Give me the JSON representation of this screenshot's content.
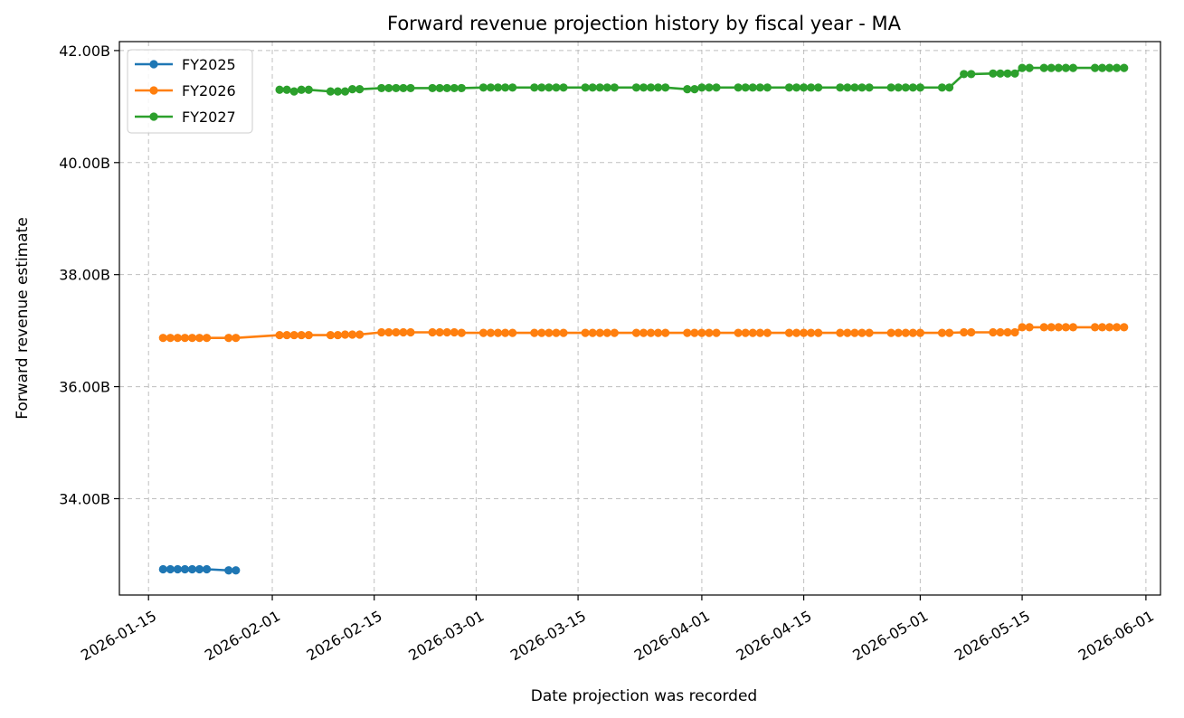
{
  "chart_data": {
    "type": "line",
    "title": "Forward revenue projection history by fiscal year - MA",
    "xlabel": "Date projection was recorded",
    "ylabel": "Forward revenue estimate",
    "x_type": "date",
    "xlim": [
      "2026-01-11",
      "2026-06-03"
    ],
    "ylim": [
      32.28,
      42.16
    ],
    "x_ticks": [
      "2026-01-15",
      "2026-02-01",
      "2026-02-15",
      "2026-03-01",
      "2026-03-15",
      "2026-04-01",
      "2026-04-15",
      "2026-05-01",
      "2026-05-15",
      "2026-06-01"
    ],
    "y_ticks": [
      34.0,
      36.0,
      38.0,
      40.0,
      42.0
    ],
    "y_tick_labels": [
      "34.00B",
      "36.00B",
      "38.00B",
      "40.00B",
      "42.00B"
    ],
    "grid": true,
    "legend_position": "top-left",
    "series": [
      {
        "name": "FY2025",
        "color": "#1f77b4",
        "points": [
          [
            "2026-01-17",
            32.74
          ],
          [
            "2026-01-18",
            32.74
          ],
          [
            "2026-01-19",
            32.74
          ],
          [
            "2026-01-20",
            32.74
          ],
          [
            "2026-01-21",
            32.74
          ],
          [
            "2026-01-22",
            32.74
          ],
          [
            "2026-01-23",
            32.74
          ],
          [
            "2026-01-26",
            32.72
          ],
          [
            "2026-01-27",
            32.72
          ]
        ]
      },
      {
        "name": "FY2026",
        "color": "#ff7f0e",
        "points": [
          [
            "2026-01-17",
            36.87
          ],
          [
            "2026-01-18",
            36.87
          ],
          [
            "2026-01-19",
            36.87
          ],
          [
            "2026-01-20",
            36.87
          ],
          [
            "2026-01-21",
            36.87
          ],
          [
            "2026-01-22",
            36.87
          ],
          [
            "2026-01-23",
            36.87
          ],
          [
            "2026-01-26",
            36.87
          ],
          [
            "2026-01-27",
            36.87
          ],
          [
            "2026-02-02",
            36.92
          ],
          [
            "2026-02-03",
            36.92
          ],
          [
            "2026-02-04",
            36.92
          ],
          [
            "2026-02-05",
            36.92
          ],
          [
            "2026-02-06",
            36.92
          ],
          [
            "2026-02-09",
            36.92
          ],
          [
            "2026-02-10",
            36.92
          ],
          [
            "2026-02-11",
            36.93
          ],
          [
            "2026-02-12",
            36.93
          ],
          [
            "2026-02-13",
            36.93
          ],
          [
            "2026-02-16",
            36.97
          ],
          [
            "2026-02-17",
            36.97
          ],
          [
            "2026-02-18",
            36.97
          ],
          [
            "2026-02-19",
            36.97
          ],
          [
            "2026-02-20",
            36.97
          ],
          [
            "2026-02-23",
            36.97
          ],
          [
            "2026-02-24",
            36.97
          ],
          [
            "2026-02-25",
            36.97
          ],
          [
            "2026-02-26",
            36.97
          ],
          [
            "2026-02-27",
            36.96
          ],
          [
            "2026-03-02",
            36.96
          ],
          [
            "2026-03-03",
            36.96
          ],
          [
            "2026-03-04",
            36.96
          ],
          [
            "2026-03-05",
            36.96
          ],
          [
            "2026-03-06",
            36.96
          ],
          [
            "2026-03-09",
            36.96
          ],
          [
            "2026-03-10",
            36.96
          ],
          [
            "2026-03-11",
            36.96
          ],
          [
            "2026-03-12",
            36.96
          ],
          [
            "2026-03-13",
            36.96
          ],
          [
            "2026-03-16",
            36.96
          ],
          [
            "2026-03-17",
            36.96
          ],
          [
            "2026-03-18",
            36.96
          ],
          [
            "2026-03-19",
            36.96
          ],
          [
            "2026-03-20",
            36.96
          ],
          [
            "2026-03-23",
            36.96
          ],
          [
            "2026-03-24",
            36.96
          ],
          [
            "2026-03-25",
            36.96
          ],
          [
            "2026-03-26",
            36.96
          ],
          [
            "2026-03-27",
            36.96
          ],
          [
            "2026-03-30",
            36.96
          ],
          [
            "2026-03-31",
            36.96
          ],
          [
            "2026-04-01",
            36.96
          ],
          [
            "2026-04-02",
            36.96
          ],
          [
            "2026-04-03",
            36.96
          ],
          [
            "2026-04-06",
            36.96
          ],
          [
            "2026-04-07",
            36.96
          ],
          [
            "2026-04-08",
            36.96
          ],
          [
            "2026-04-09",
            36.96
          ],
          [
            "2026-04-10",
            36.96
          ],
          [
            "2026-04-13",
            36.96
          ],
          [
            "2026-04-14",
            36.96
          ],
          [
            "2026-04-15",
            36.96
          ],
          [
            "2026-04-16",
            36.96
          ],
          [
            "2026-04-17",
            36.96
          ],
          [
            "2026-04-20",
            36.96
          ],
          [
            "2026-04-21",
            36.96
          ],
          [
            "2026-04-22",
            36.96
          ],
          [
            "2026-04-23",
            36.96
          ],
          [
            "2026-04-24",
            36.96
          ],
          [
            "2026-04-27",
            36.96
          ],
          [
            "2026-04-28",
            36.96
          ],
          [
            "2026-04-29",
            36.96
          ],
          [
            "2026-04-30",
            36.96
          ],
          [
            "2026-05-01",
            36.96
          ],
          [
            "2026-05-04",
            36.96
          ],
          [
            "2026-05-05",
            36.96
          ],
          [
            "2026-05-07",
            36.97
          ],
          [
            "2026-05-08",
            36.97
          ],
          [
            "2026-05-11",
            36.97
          ],
          [
            "2026-05-12",
            36.97
          ],
          [
            "2026-05-13",
            36.97
          ],
          [
            "2026-05-14",
            36.97
          ],
          [
            "2026-05-15",
            37.06
          ],
          [
            "2026-05-16",
            37.06
          ],
          [
            "2026-05-18",
            37.06
          ],
          [
            "2026-05-19",
            37.06
          ],
          [
            "2026-05-20",
            37.06
          ],
          [
            "2026-05-21",
            37.06
          ],
          [
            "2026-05-22",
            37.06
          ],
          [
            "2026-05-25",
            37.06
          ],
          [
            "2026-05-26",
            37.06
          ],
          [
            "2026-05-27",
            37.06
          ],
          [
            "2026-05-28",
            37.06
          ],
          [
            "2026-05-29",
            37.06
          ]
        ]
      },
      {
        "name": "FY2027",
        "color": "#2ca02c",
        "points": [
          [
            "2026-02-02",
            41.3
          ],
          [
            "2026-02-03",
            41.3
          ],
          [
            "2026-02-04",
            41.27
          ],
          [
            "2026-02-05",
            41.3
          ],
          [
            "2026-02-06",
            41.3
          ],
          [
            "2026-02-09",
            41.27
          ],
          [
            "2026-02-10",
            41.27
          ],
          [
            "2026-02-11",
            41.27
          ],
          [
            "2026-02-12",
            41.31
          ],
          [
            "2026-02-13",
            41.31
          ],
          [
            "2026-02-16",
            41.33
          ],
          [
            "2026-02-17",
            41.33
          ],
          [
            "2026-02-18",
            41.33
          ],
          [
            "2026-02-19",
            41.33
          ],
          [
            "2026-02-20",
            41.33
          ],
          [
            "2026-02-23",
            41.33
          ],
          [
            "2026-02-24",
            41.33
          ],
          [
            "2026-02-25",
            41.33
          ],
          [
            "2026-02-26",
            41.33
          ],
          [
            "2026-02-27",
            41.33
          ],
          [
            "2026-03-02",
            41.34
          ],
          [
            "2026-03-03",
            41.34
          ],
          [
            "2026-03-04",
            41.34
          ],
          [
            "2026-03-05",
            41.34
          ],
          [
            "2026-03-06",
            41.34
          ],
          [
            "2026-03-09",
            41.34
          ],
          [
            "2026-03-10",
            41.34
          ],
          [
            "2026-03-11",
            41.34
          ],
          [
            "2026-03-12",
            41.34
          ],
          [
            "2026-03-13",
            41.34
          ],
          [
            "2026-03-16",
            41.34
          ],
          [
            "2026-03-17",
            41.34
          ],
          [
            "2026-03-18",
            41.34
          ],
          [
            "2026-03-19",
            41.34
          ],
          [
            "2026-03-20",
            41.34
          ],
          [
            "2026-03-23",
            41.34
          ],
          [
            "2026-03-24",
            41.34
          ],
          [
            "2026-03-25",
            41.34
          ],
          [
            "2026-03-26",
            41.34
          ],
          [
            "2026-03-27",
            41.34
          ],
          [
            "2026-03-30",
            41.31
          ],
          [
            "2026-03-31",
            41.31
          ],
          [
            "2026-04-01",
            41.34
          ],
          [
            "2026-04-02",
            41.34
          ],
          [
            "2026-04-03",
            41.34
          ],
          [
            "2026-04-06",
            41.34
          ],
          [
            "2026-04-07",
            41.34
          ],
          [
            "2026-04-08",
            41.34
          ],
          [
            "2026-04-09",
            41.34
          ],
          [
            "2026-04-10",
            41.34
          ],
          [
            "2026-04-13",
            41.34
          ],
          [
            "2026-04-14",
            41.34
          ],
          [
            "2026-04-15",
            41.34
          ],
          [
            "2026-04-16",
            41.34
          ],
          [
            "2026-04-17",
            41.34
          ],
          [
            "2026-04-20",
            41.34
          ],
          [
            "2026-04-21",
            41.34
          ],
          [
            "2026-04-22",
            41.34
          ],
          [
            "2026-04-23",
            41.34
          ],
          [
            "2026-04-24",
            41.34
          ],
          [
            "2026-04-27",
            41.34
          ],
          [
            "2026-04-28",
            41.34
          ],
          [
            "2026-04-29",
            41.34
          ],
          [
            "2026-04-30",
            41.34
          ],
          [
            "2026-05-01",
            41.34
          ],
          [
            "2026-05-04",
            41.34
          ],
          [
            "2026-05-05",
            41.34
          ],
          [
            "2026-05-07",
            41.58
          ],
          [
            "2026-05-08",
            41.58
          ],
          [
            "2026-05-11",
            41.59
          ],
          [
            "2026-05-12",
            41.59
          ],
          [
            "2026-05-13",
            41.59
          ],
          [
            "2026-05-14",
            41.59
          ],
          [
            "2026-05-15",
            41.69
          ],
          [
            "2026-05-16",
            41.69
          ],
          [
            "2026-05-18",
            41.69
          ],
          [
            "2026-05-19",
            41.69
          ],
          [
            "2026-05-20",
            41.69
          ],
          [
            "2026-05-21",
            41.69
          ],
          [
            "2026-05-22",
            41.69
          ],
          [
            "2026-05-25",
            41.69
          ],
          [
            "2026-05-26",
            41.69
          ],
          [
            "2026-05-27",
            41.69
          ],
          [
            "2026-05-28",
            41.69
          ],
          [
            "2026-05-29",
            41.69
          ]
        ]
      }
    ]
  }
}
